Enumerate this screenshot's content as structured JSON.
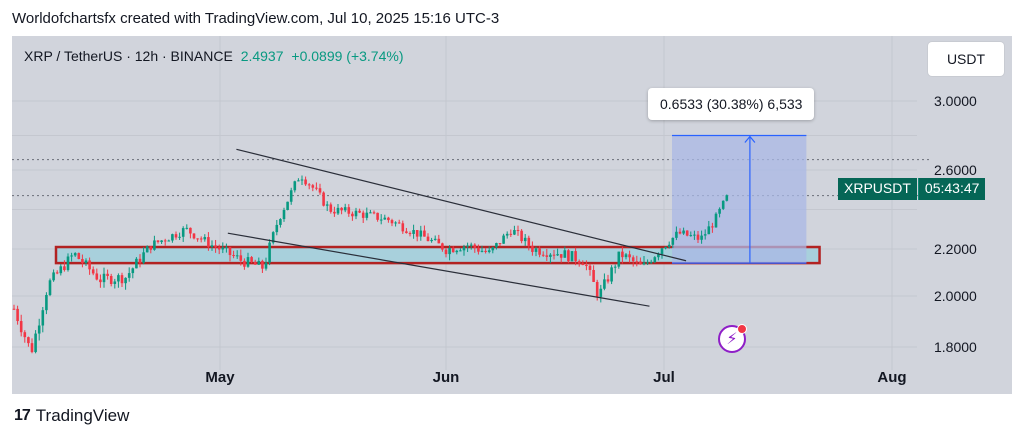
{
  "header": {
    "title": "Worldofchartsfx created with TradingView.com, Jul 10, 2025 15:16 UTC-3"
  },
  "legend": {
    "symbol": "XRP / TetherUS · 12h · BINANCE",
    "price": "2.4937",
    "change": "+0.0899 (+3.74%)"
  },
  "currency_button": "USDT",
  "measure": {
    "label": "0.6533 (30.38%) 6,533"
  },
  "symbol_tag": {
    "symbol": "XRPUSDT",
    "timer": "05:43:47"
  },
  "footer": {
    "brand": "TradingView",
    "logo_glyph": "17"
  },
  "colors": {
    "up": "#089981",
    "down": "#f23645",
    "zone_fill": "#a8d0dc",
    "zone_border": "#b22222",
    "measure_fill": "#aab8e6",
    "measure_line": "#2962ff"
  },
  "chart_data": {
    "type": "candlestick",
    "y_axis": {
      "labels": [
        "3.0000",
        "2.6000",
        "2.2000",
        "2.0000",
        "1.8000"
      ],
      "range": [
        1.7,
        3.1
      ]
    },
    "x_axis": {
      "labels": [
        "May",
        "Jun",
        "Jul",
        "Aug"
      ]
    },
    "close_path": [
      {
        "d": "2025-04-07",
        "c": 1.95
      },
      {
        "d": "2025-04-09",
        "c": 1.78
      },
      {
        "d": "2025-04-11",
        "c": 2.05
      },
      {
        "d": "2025-04-14",
        "c": 2.18
      },
      {
        "d": "2025-04-17",
        "c": 2.07
      },
      {
        "d": "2025-04-20",
        "c": 2.08
      },
      {
        "d": "2025-04-23",
        "c": 2.22
      },
      {
        "d": "2025-04-27",
        "c": 2.3
      },
      {
        "d": "2025-04-30",
        "c": 2.22
      },
      {
        "d": "2025-05-04",
        "c": 2.15
      },
      {
        "d": "2025-05-07",
        "c": 2.12
      },
      {
        "d": "2025-05-09",
        "c": 2.35
      },
      {
        "d": "2025-05-12",
        "c": 2.58
      },
      {
        "d": "2025-05-14",
        "c": 2.5
      },
      {
        "d": "2025-05-16",
        "c": 2.4
      },
      {
        "d": "2025-05-20",
        "c": 2.38
      },
      {
        "d": "2025-05-24",
        "c": 2.35
      },
      {
        "d": "2025-05-28",
        "c": 2.28
      },
      {
        "d": "2025-06-01",
        "c": 2.2
      },
      {
        "d": "2025-06-04",
        "c": 2.22
      },
      {
        "d": "2025-06-07",
        "c": 2.18
      },
      {
        "d": "2025-06-10",
        "c": 2.3
      },
      {
        "d": "2025-06-13",
        "c": 2.2
      },
      {
        "d": "2025-06-17",
        "c": 2.18
      },
      {
        "d": "2025-06-20",
        "c": 2.15
      },
      {
        "d": "2025-06-22",
        "c": 2.0
      },
      {
        "d": "2025-06-25",
        "c": 2.18
      },
      {
        "d": "2025-06-28",
        "c": 2.12
      },
      {
        "d": "2025-07-01",
        "c": 2.22
      },
      {
        "d": "2025-07-03",
        "c": 2.28
      },
      {
        "d": "2025-07-06",
        "c": 2.25
      },
      {
        "d": "2025-07-08",
        "c": 2.35
      },
      {
        "d": "2025-07-10",
        "c": 2.49
      }
    ],
    "support_zone": {
      "low": 2.14,
      "high": 2.21,
      "start": "2025-04-07",
      "end": "2025-07-11"
    },
    "trendlines": [
      {
        "p1": {
          "d": "2025-04-30",
          "v": 2.72
        },
        "p2": {
          "d": "2025-07-04",
          "v": 2.15
        }
      },
      {
        "p1": {
          "d": "2025-04-29",
          "v": 2.28
        },
        "p2": {
          "d": "2025-06-29",
          "v": 1.96
        }
      }
    ],
    "dotted_levels": [
      2.66,
      2.47
    ],
    "measure_box": {
      "start": "2025-07-01",
      "end": "2025-07-19",
      "low": 2.14,
      "high": 2.8,
      "arrow_date": "2025-07-12"
    }
  }
}
